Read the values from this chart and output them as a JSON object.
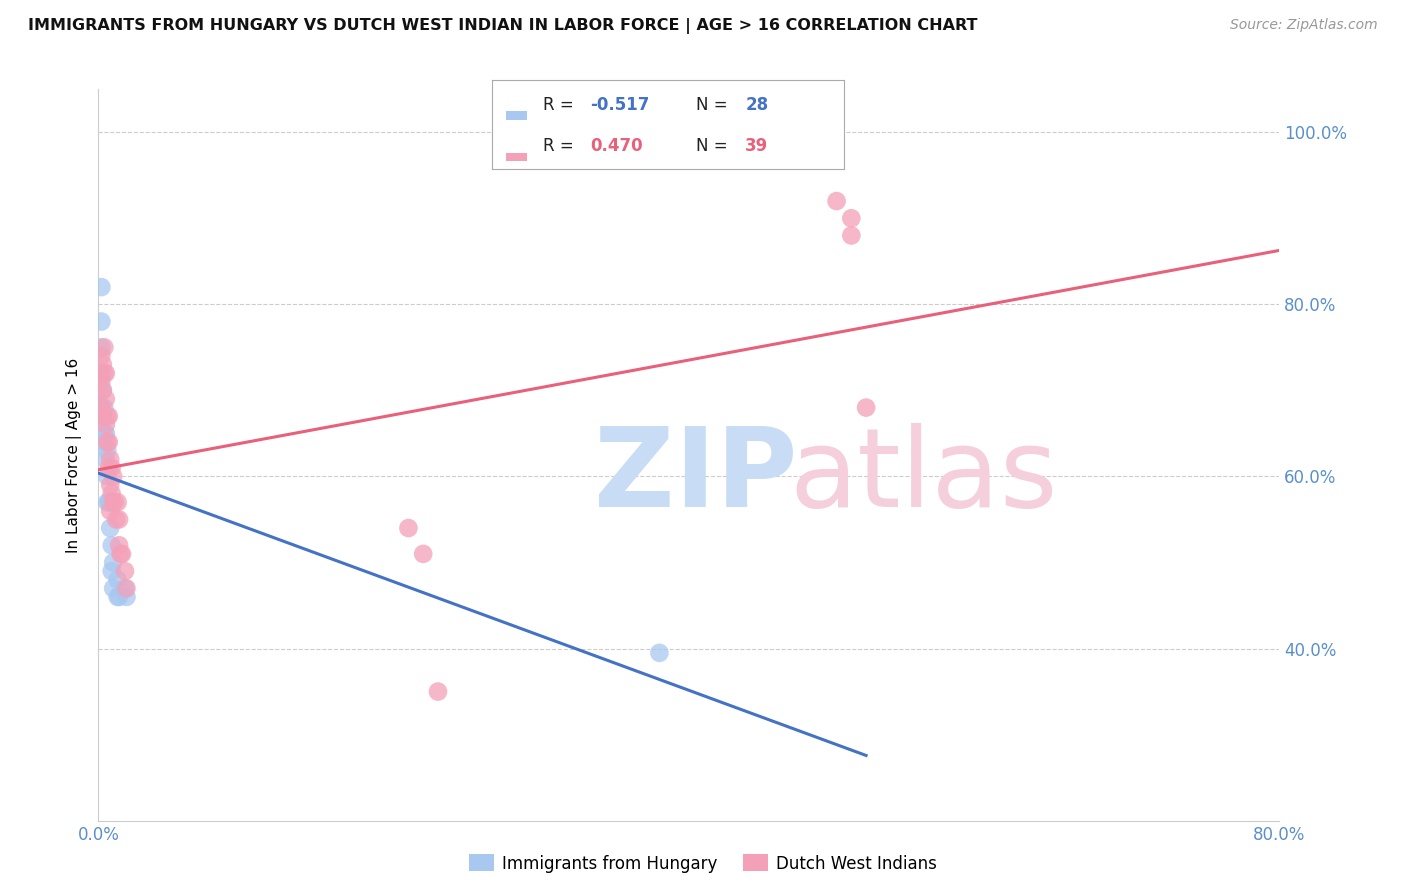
{
  "title": "IMMIGRANTS FROM HUNGARY VS DUTCH WEST INDIAN IN LABOR FORCE | AGE > 16 CORRELATION CHART",
  "source": "Source: ZipAtlas.com",
  "ylabel": "In Labor Force | Age > 16",
  "xlim": [
    0.0,
    0.8
  ],
  "ylim": [
    0.2,
    1.05
  ],
  "legend_label1": "Immigrants from Hungary",
  "legend_label2": "Dutch West Indians",
  "R1": -0.517,
  "N1": 28,
  "R2": 0.47,
  "N2": 39,
  "color_hungary": "#A8C8F0",
  "color_dutch": "#F4A0B8",
  "color_hungary_line": "#4472C4",
  "color_dutch_line": "#E8607A",
  "hungary_x": [
    0.002,
    0.002,
    0.002,
    0.002,
    0.002,
    0.003,
    0.003,
    0.003,
    0.004,
    0.004,
    0.005,
    0.005,
    0.006,
    0.006,
    0.006,
    0.007,
    0.008,
    0.008,
    0.009,
    0.009,
    0.01,
    0.01,
    0.013,
    0.013,
    0.014,
    0.018,
    0.019,
    0.38
  ],
  "hungary_y": [
    0.82,
    0.78,
    0.75,
    0.72,
    0.68,
    0.7,
    0.67,
    0.64,
    0.68,
    0.65,
    0.65,
    0.62,
    0.63,
    0.6,
    0.57,
    0.57,
    0.57,
    0.54,
    0.52,
    0.49,
    0.5,
    0.47,
    0.48,
    0.46,
    0.46,
    0.47,
    0.46,
    0.395
  ],
  "dutch_x": [
    0.002,
    0.002,
    0.002,
    0.003,
    0.003,
    0.003,
    0.004,
    0.004,
    0.005,
    0.005,
    0.005,
    0.006,
    0.006,
    0.007,
    0.007,
    0.007,
    0.008,
    0.008,
    0.008,
    0.009,
    0.009,
    0.01,
    0.01,
    0.011,
    0.012,
    0.013,
    0.014,
    0.014,
    0.015,
    0.016,
    0.018,
    0.019,
    0.21,
    0.22,
    0.23,
    0.5,
    0.51,
    0.51,
    0.52
  ],
  "dutch_y": [
    0.74,
    0.71,
    0.68,
    0.73,
    0.7,
    0.67,
    0.75,
    0.72,
    0.72,
    0.69,
    0.66,
    0.67,
    0.64,
    0.67,
    0.64,
    0.61,
    0.62,
    0.59,
    0.56,
    0.61,
    0.58,
    0.6,
    0.57,
    0.57,
    0.55,
    0.57,
    0.55,
    0.52,
    0.51,
    0.51,
    0.49,
    0.47,
    0.54,
    0.51,
    0.35,
    0.92,
    0.9,
    0.88,
    0.68
  ],
  "grid_yticks": [
    0.4,
    0.6,
    0.8,
    1.0
  ],
  "grid_color": "#CCCCCC",
  "watermark_zip_color": "#C8DCF5",
  "watermark_atlas_color": "#F5D0DC"
}
